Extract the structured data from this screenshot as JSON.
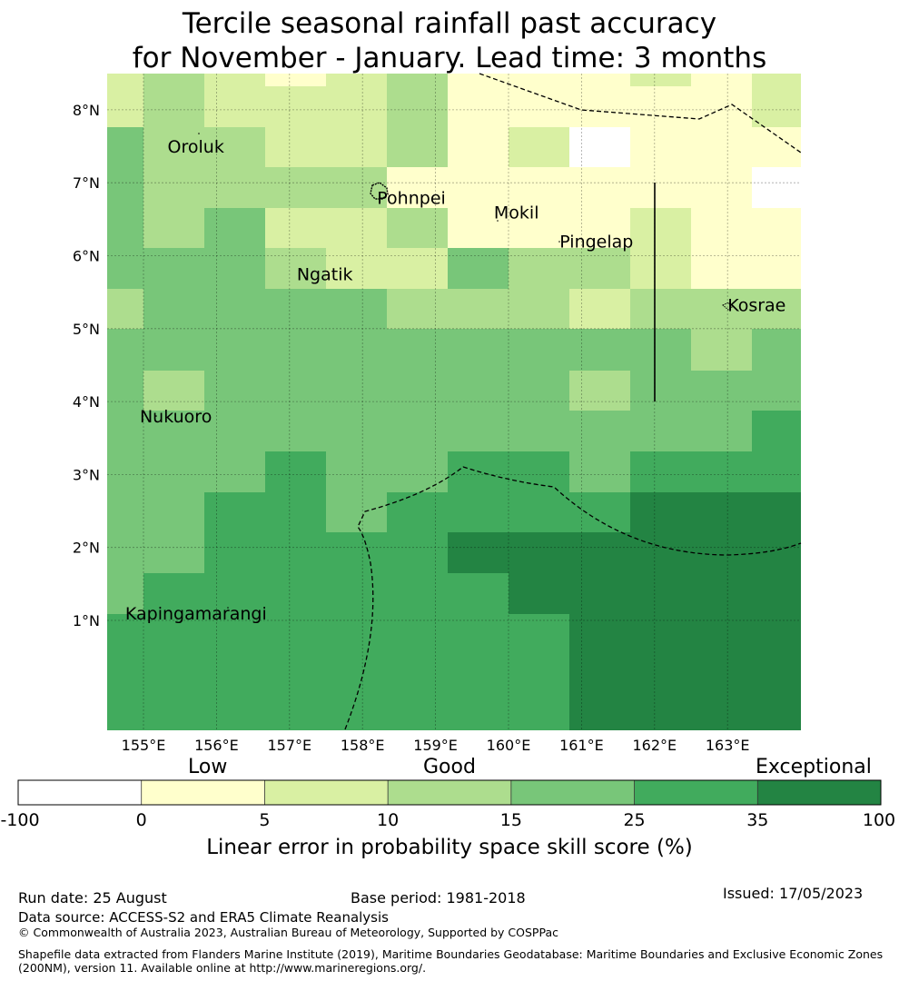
{
  "title": {
    "line1": "Tercile seasonal rainfall past accuracy",
    "line2": "for November - January. Lead time: 3 months"
  },
  "map": {
    "lon_labels": [
      "155°E",
      "156°E",
      "157°E",
      "158°E",
      "159°E",
      "160°E",
      "161°E",
      "162°E",
      "163°E"
    ],
    "lat_labels": [
      "8°N",
      "7°N",
      "6°N",
      "5°N",
      "4°N",
      "3°N",
      "2°N",
      "1°N"
    ],
    "lon_range": [
      154.5,
      164.0
    ],
    "lat_range": [
      -0.5,
      8.5
    ],
    "grid_lines": true,
    "places": [
      {
        "name": "Oroluk",
        "lon": 155.33,
        "lat": 7.5
      },
      {
        "name": "Pohnpei",
        "lon": 158.2,
        "lat": 6.8
      },
      {
        "name": "Mokil",
        "lon": 159.8,
        "lat": 6.6
      },
      {
        "name": "Pingelap",
        "lon": 160.7,
        "lat": 6.2
      },
      {
        "name": "Ngatik",
        "lon": 157.1,
        "lat": 5.75
      },
      {
        "name": "Kosrae",
        "lon": 163.0,
        "lat": 5.33
      },
      {
        "name": "Nukuoro",
        "lon": 154.95,
        "lat": 3.8
      },
      {
        "name": "Kapingamarangi",
        "lon": 154.75,
        "lat": 1.1
      }
    ]
  },
  "colorbar": {
    "category_labels": [
      "Low",
      "Good",
      "Exceptional"
    ],
    "tick_labels": [
      "-100",
      "0",
      "5",
      "10",
      "15",
      "25",
      "35",
      "100"
    ],
    "colors": [
      "#ffffff",
      "#ffffcc",
      "#d9f0a3",
      "#addd8e",
      "#78c679",
      "#41ab5d",
      "#238443"
    ],
    "title": "Linear error in probability space skill score (%)"
  },
  "footer": {
    "run_date": "Run date: 25 August",
    "base_period": "Base period: 1981-2018",
    "issued": "Issued: 17/05/2023",
    "data_source": "Data source: ACCESS-S2 and ERA5 Climate Reanalysis",
    "copyright": "© Commonwealth of Australia 2023, Australian Bureau of Meteorology, Supported by COSPPac",
    "shapefile_line1": "Shapefile data extracted from Flanders Marine Institute (2019), Maritime Boundaries Geodatabase: Maritime Boundaries and Exclusive Economic Zones",
    "shapefile_line2": "(200NM), version 11. Available online at http://www.marineregions.org/."
  }
}
